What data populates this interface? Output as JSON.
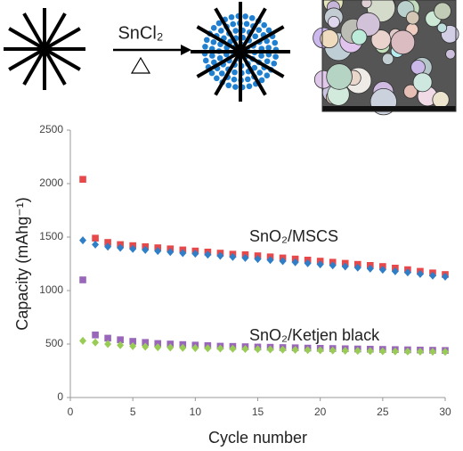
{
  "scheme": {
    "reagent": "SnCl₂"
  },
  "chart_data": {
    "type": "scatter",
    "x_label": "Cycle number",
    "y_label": "Capacity (mAhg⁻¹)",
    "annotations": [
      "SnO₂/MSCS",
      "SnO₂/Ketjen black"
    ],
    "x": [
      1,
      2,
      3,
      4,
      5,
      6,
      7,
      8,
      9,
      10,
      11,
      12,
      13,
      14,
      15,
      16,
      17,
      18,
      19,
      20,
      21,
      22,
      23,
      24,
      25,
      26,
      27,
      28,
      29,
      30
    ],
    "series": [
      {
        "color": "#e8484a",
        "marker": "square",
        "values": [
          2040,
          1490,
          1450,
          1430,
          1420,
          1410,
          1400,
          1390,
          1380,
          1370,
          1360,
          1350,
          1340,
          1335,
          1325,
          1315,
          1305,
          1295,
          1285,
          1275,
          1265,
          1255,
          1245,
          1235,
          1225,
          1210,
          1195,
          1180,
          1165,
          1150
        ]
      },
      {
        "color": "#2f7fc8",
        "marker": "diamond",
        "values": [
          1470,
          1430,
          1410,
          1400,
          1390,
          1380,
          1370,
          1360,
          1350,
          1345,
          1335,
          1325,
          1315,
          1305,
          1295,
          1285,
          1275,
          1265,
          1255,
          1245,
          1235,
          1225,
          1215,
          1205,
          1195,
          1180,
          1170,
          1155,
          1140,
          1130
        ]
      },
      {
        "color": "#9966bb",
        "marker": "square",
        "values": [
          1100,
          585,
          555,
          540,
          525,
          515,
          505,
          500,
          495,
          490,
          485,
          480,
          478,
          475,
          472,
          470,
          467,
          465,
          462,
          460,
          458,
          456,
          454,
          452,
          450,
          448,
          446,
          444,
          442,
          440
        ]
      },
      {
        "color": "#99cc55",
        "marker": "diamond",
        "values": [
          530,
          515,
          500,
          490,
          480,
          475,
          470,
          468,
          465,
          462,
          460,
          458,
          456,
          454,
          452,
          450,
          448,
          446,
          444,
          442,
          440,
          438,
          436,
          434,
          432,
          431,
          430,
          429,
          428,
          427
        ]
      }
    ],
    "xlim": [
      0,
      30
    ],
    "ylim": [
      0,
      2500
    ],
    "xticks": [
      0,
      5,
      10,
      15,
      20,
      25,
      30
    ],
    "yticks": [
      0,
      500,
      1000,
      1500,
      2000,
      2500
    ]
  }
}
